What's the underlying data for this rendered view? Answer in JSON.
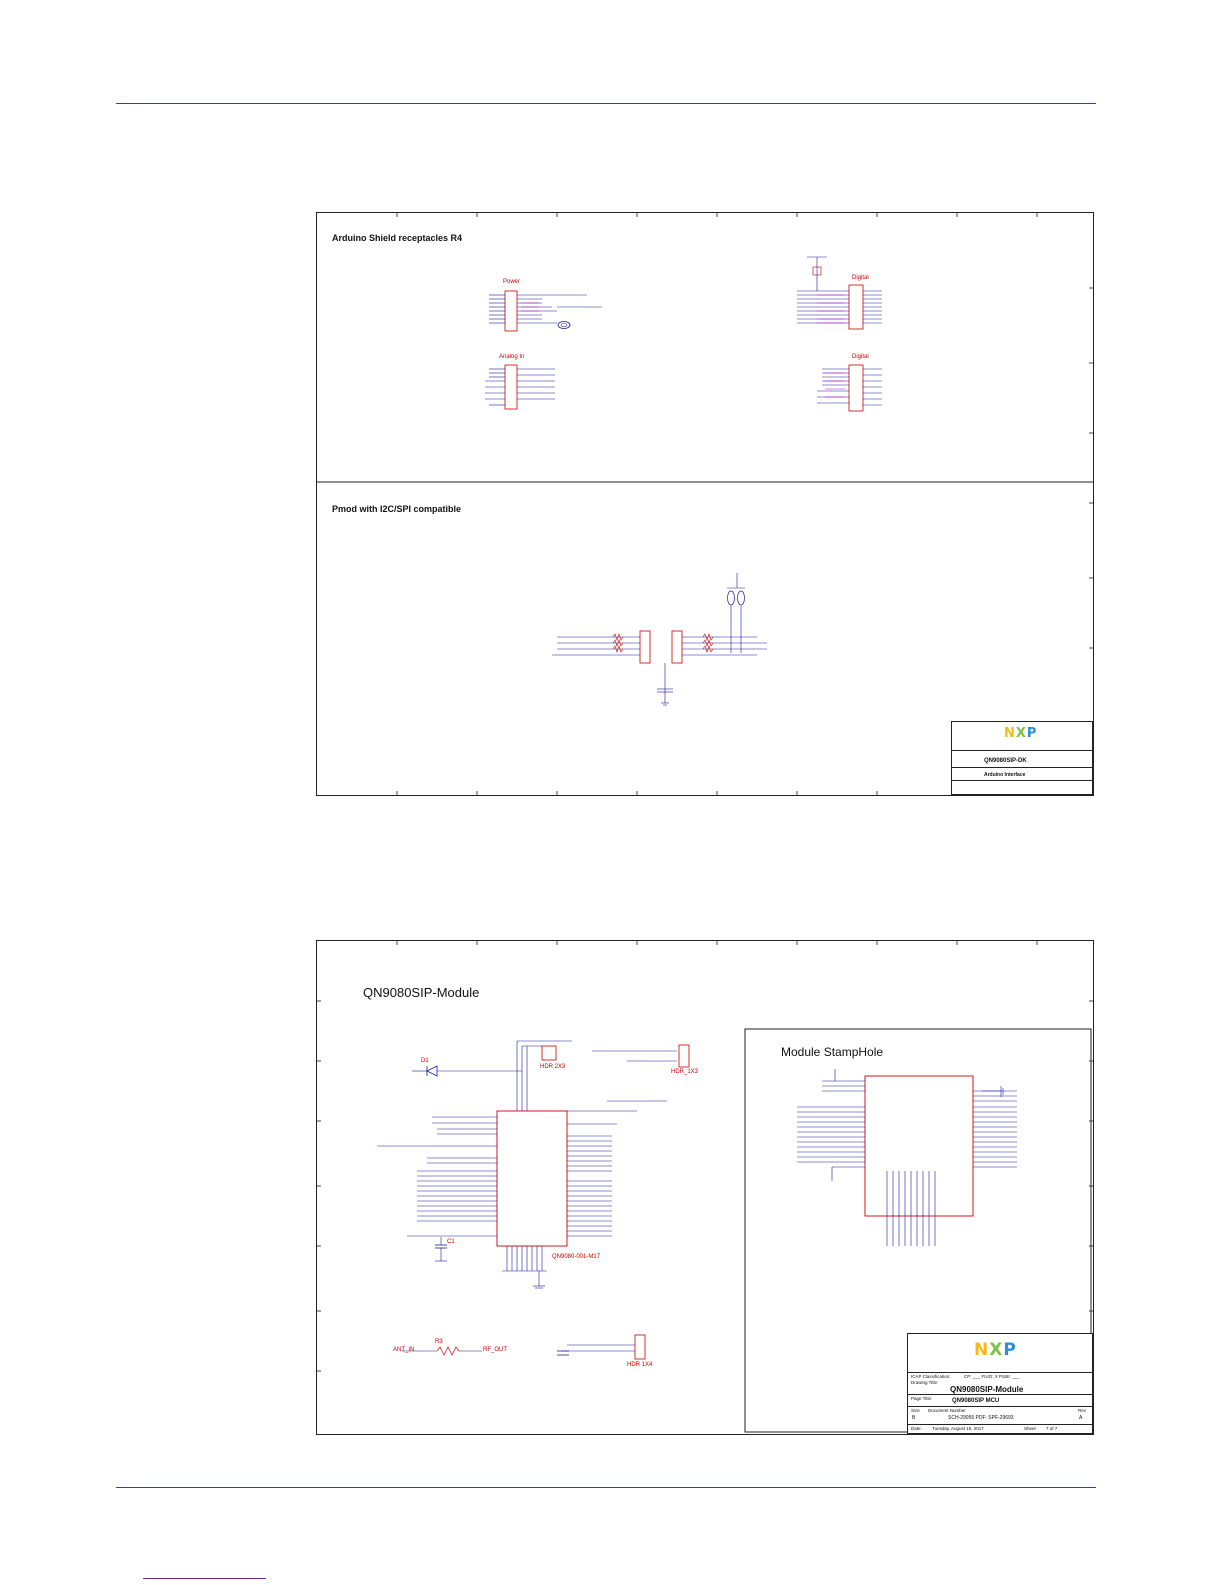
{
  "sheet1": {
    "sec_arduino": "Arduino Shield receptacles R4",
    "sec_pmod": "Pmod with I2C/SPI compatible",
    "hdr_power": "Power",
    "hdr_analog": "Analog In",
    "hdr_digital1": "Digital",
    "hdr_digital2": "Digital",
    "title_block": {
      "logo_n": "N",
      "logo_x": "X",
      "logo_p": "P",
      "drawing_title": "QN9080SIP-DK",
      "page_title": "Arduino Interface"
    }
  },
  "sheet2": {
    "sec_module": "QN9080SIP-Module",
    "sec_stamphole": "Module StampHole",
    "u1_part": "QN9080-001-M17",
    "j1_label": "HDR 2X3",
    "j2_label": "HDR_1X3",
    "j4_label": "HDR 1X4",
    "d1_label": "D1",
    "c1_label": "C1",
    "r3_label": "R3",
    "ant_in": "ANT_IN",
    "rf_out": "RF_OUT",
    "title_block": {
      "logo_n": "N",
      "logo_x": "X",
      "logo_p": "P",
      "classification_label": "ICAP Classification:",
      "classification_values": "CP: ___   FIUO: X   PUBI: ___",
      "drawing_title_label": "Drawing Title:",
      "drawing_title": "QN9080SIP-Module",
      "page_title_label": "Page Title:",
      "page_title": "QN9080SIP MCU",
      "size_label": "Size",
      "size": "B",
      "doc_number_label": "Document Number",
      "doc_number": "SCH-29055 PDF: SPF-29693",
      "rev_label": "Rev",
      "rev": "A",
      "date_label": "Date:",
      "date": "Tuesday, August 15, 2017",
      "sheet_label": "Sheet",
      "sheet": "7   of   7"
    }
  },
  "colors": {
    "rule": "#6a2a8a",
    "wire": "#1a1aa0",
    "part": "#cc0000",
    "net_label": "#cc00cc"
  }
}
